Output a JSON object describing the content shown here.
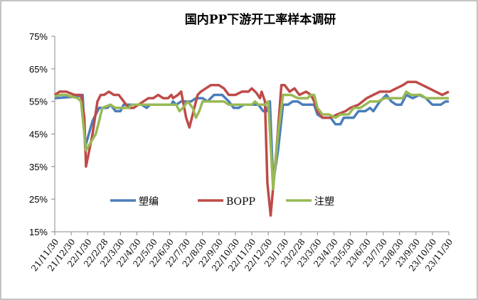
{
  "chart_data": {
    "type": "line",
    "title": "国内PP下游开工率样本调研",
    "xlabel": "",
    "ylabel": "",
    "ylim": [
      15,
      75
    ],
    "yticks": [
      "15%",
      "25%",
      "35%",
      "45%",
      "55%",
      "65%",
      "75%"
    ],
    "yvalues": [
      15,
      25,
      35,
      45,
      55,
      65,
      75
    ],
    "xticks": [
      "21/11/30",
      "21/12/30",
      "22/1/30",
      "22/2/28",
      "22/3/30",
      "22/4/30",
      "22/5/30",
      "22/6/30",
      "22/7/30",
      "22/8/30",
      "22/9/30",
      "22/10/30",
      "22/11/30",
      "22/12/30",
      "23/1/30",
      "23/2/28",
      "23/3/30",
      "23/4/30",
      "23/5/30",
      "23/6/30",
      "23/7/30",
      "23/8/30",
      "23/9/30",
      "23/10/30",
      "23/11/30"
    ],
    "x_unit": "months since 21/11/30",
    "legend_position": "bottom-inside",
    "series": [
      {
        "name": "塑编",
        "color": "#4a7ebb",
        "points": [
          [
            0,
            56
          ],
          [
            1.4,
            56.5
          ],
          [
            1.7,
            57
          ],
          [
            1.85,
            41
          ],
          [
            2.3,
            49
          ],
          [
            2.7,
            53
          ],
          [
            3.2,
            53
          ],
          [
            3.4,
            54
          ],
          [
            3.7,
            52
          ],
          [
            4.0,
            52
          ],
          [
            4.2,
            54
          ],
          [
            5.3,
            54
          ],
          [
            5.6,
            53
          ],
          [
            5.8,
            54
          ],
          [
            7.1,
            54
          ],
          [
            7.2,
            55
          ],
          [
            7.4,
            54
          ],
          [
            7.7,
            55
          ],
          [
            8.3,
            55
          ],
          [
            8.6,
            56
          ],
          [
            9.0,
            56
          ],
          [
            9.3,
            55
          ],
          [
            9.7,
            57
          ],
          [
            10.2,
            57
          ],
          [
            10.6,
            55
          ],
          [
            10.9,
            53
          ],
          [
            11.2,
            53
          ],
          [
            11.5,
            54
          ],
          [
            12.4,
            54
          ],
          [
            12.7,
            52
          ],
          [
            12.9,
            52
          ],
          [
            13.1,
            55
          ],
          [
            13.3,
            30
          ],
          [
            13.6,
            40
          ],
          [
            13.9,
            54
          ],
          [
            14.2,
            54
          ],
          [
            14.5,
            55
          ],
          [
            14.8,
            55
          ],
          [
            15.1,
            54
          ],
          [
            15.8,
            54
          ],
          [
            16.0,
            51
          ],
          [
            16.3,
            50
          ],
          [
            16.8,
            50
          ],
          [
            17.1,
            48
          ],
          [
            17.4,
            48
          ],
          [
            17.6,
            50
          ],
          [
            18.2,
            50
          ],
          [
            18.5,
            52
          ],
          [
            18.9,
            52
          ],
          [
            19.2,
            53
          ],
          [
            19.4,
            52
          ],
          [
            19.8,
            55
          ],
          [
            20.2,
            57
          ],
          [
            20.5,
            55
          ],
          [
            20.8,
            54
          ],
          [
            21.1,
            54
          ],
          [
            21.4,
            57
          ],
          [
            21.8,
            56
          ],
          [
            22.2,
            57
          ],
          [
            22.6,
            56
          ],
          [
            23.0,
            54
          ],
          [
            23.5,
            54
          ],
          [
            23.8,
            55
          ],
          [
            24,
            55
          ]
        ]
      },
      {
        "name": "BOPP",
        "color": "#be4b48",
        "points": [
          [
            0,
            57
          ],
          [
            0.3,
            58
          ],
          [
            0.7,
            58
          ],
          [
            1.2,
            57
          ],
          [
            1.6,
            57
          ],
          [
            1.8,
            50
          ],
          [
            1.9,
            35
          ],
          [
            2.3,
            45
          ],
          [
            2.6,
            55
          ],
          [
            2.8,
            57
          ],
          [
            3.0,
            57
          ],
          [
            3.3,
            58
          ],
          [
            3.6,
            57
          ],
          [
            3.9,
            57
          ],
          [
            4.2,
            55
          ],
          [
            4.5,
            53
          ],
          [
            4.8,
            53
          ],
          [
            5.1,
            54
          ],
          [
            5.4,
            55
          ],
          [
            5.7,
            56
          ],
          [
            6.0,
            56
          ],
          [
            6.3,
            57
          ],
          [
            6.6,
            56
          ],
          [
            6.9,
            56
          ],
          [
            7.1,
            57
          ],
          [
            7.2,
            56
          ],
          [
            7.5,
            57
          ],
          [
            7.7,
            58
          ],
          [
            8.0,
            50
          ],
          [
            8.2,
            47
          ],
          [
            8.4,
            51
          ],
          [
            8.7,
            57
          ],
          [
            8.9,
            58
          ],
          [
            9.2,
            59
          ],
          [
            9.5,
            60
          ],
          [
            10.0,
            60
          ],
          [
            10.3,
            59
          ],
          [
            10.6,
            57
          ],
          [
            11.0,
            57
          ],
          [
            11.4,
            58
          ],
          [
            11.8,
            58
          ],
          [
            12.0,
            59
          ],
          [
            12.3,
            57.5
          ],
          [
            12.5,
            56
          ],
          [
            12.6,
            58
          ],
          [
            12.8,
            55
          ],
          [
            12.95,
            30
          ],
          [
            13.15,
            20
          ],
          [
            13.5,
            40
          ],
          [
            13.8,
            60
          ],
          [
            14.0,
            60
          ],
          [
            14.3,
            58
          ],
          [
            14.6,
            59
          ],
          [
            14.9,
            57
          ],
          [
            15.3,
            58
          ],
          [
            15.6,
            57
          ],
          [
            15.8,
            55
          ],
          [
            16.0,
            52
          ],
          [
            16.3,
            50
          ],
          [
            16.8,
            50
          ],
          [
            17.2,
            51
          ],
          [
            17.7,
            52
          ],
          [
            18.0,
            53
          ],
          [
            18.5,
            54
          ],
          [
            19.0,
            56
          ],
          [
            19.4,
            57
          ],
          [
            19.8,
            58
          ],
          [
            20.4,
            58
          ],
          [
            20.8,
            59
          ],
          [
            21.2,
            60
          ],
          [
            21.5,
            61
          ],
          [
            22.0,
            61
          ],
          [
            22.4,
            60
          ],
          [
            22.8,
            59
          ],
          [
            23.2,
            58
          ],
          [
            23.6,
            57
          ],
          [
            24,
            58
          ]
        ]
      },
      {
        "name": "注塑",
        "color": "#98b954",
        "points": [
          [
            0,
            56.5
          ],
          [
            0.3,
            57
          ],
          [
            0.7,
            57
          ],
          [
            1.0,
            56.5
          ],
          [
            1.4,
            56
          ],
          [
            1.6,
            55
          ],
          [
            1.9,
            40
          ],
          [
            2.5,
            45
          ],
          [
            2.9,
            53
          ],
          [
            3.4,
            54
          ],
          [
            3.7,
            53
          ],
          [
            4.5,
            53
          ],
          [
            4.7,
            54
          ],
          [
            5.1,
            54
          ],
          [
            7.4,
            54
          ],
          [
            7.6,
            52
          ],
          [
            7.8,
            53
          ],
          [
            8.1,
            55
          ],
          [
            8.4,
            53
          ],
          [
            8.6,
            50
          ],
          [
            8.8,
            52
          ],
          [
            9.0,
            55
          ],
          [
            9.5,
            55
          ],
          [
            10.3,
            55
          ],
          [
            10.6,
            54
          ],
          [
            12.0,
            54
          ],
          [
            12.2,
            55
          ],
          [
            12.4,
            54
          ],
          [
            12.8,
            54
          ],
          [
            13.0,
            55
          ],
          [
            13.3,
            28
          ],
          [
            13.6,
            45
          ],
          [
            13.9,
            57
          ],
          [
            14.4,
            57
          ],
          [
            14.8,
            56
          ],
          [
            15.4,
            56
          ],
          [
            15.6,
            57
          ],
          [
            15.8,
            57
          ],
          [
            16.0,
            53
          ],
          [
            16.3,
            51
          ],
          [
            16.7,
            51
          ],
          [
            17.1,
            50
          ],
          [
            17.4,
            51
          ],
          [
            17.9,
            51
          ],
          [
            18.2,
            53
          ],
          [
            18.6,
            53
          ],
          [
            18.9,
            54
          ],
          [
            19.2,
            55
          ],
          [
            19.7,
            55
          ],
          [
            20.1,
            56
          ],
          [
            21.2,
            56
          ],
          [
            21.4,
            58
          ],
          [
            21.7,
            57
          ],
          [
            22.3,
            57
          ],
          [
            22.6,
            56
          ],
          [
            24,
            56
          ]
        ]
      }
    ]
  }
}
